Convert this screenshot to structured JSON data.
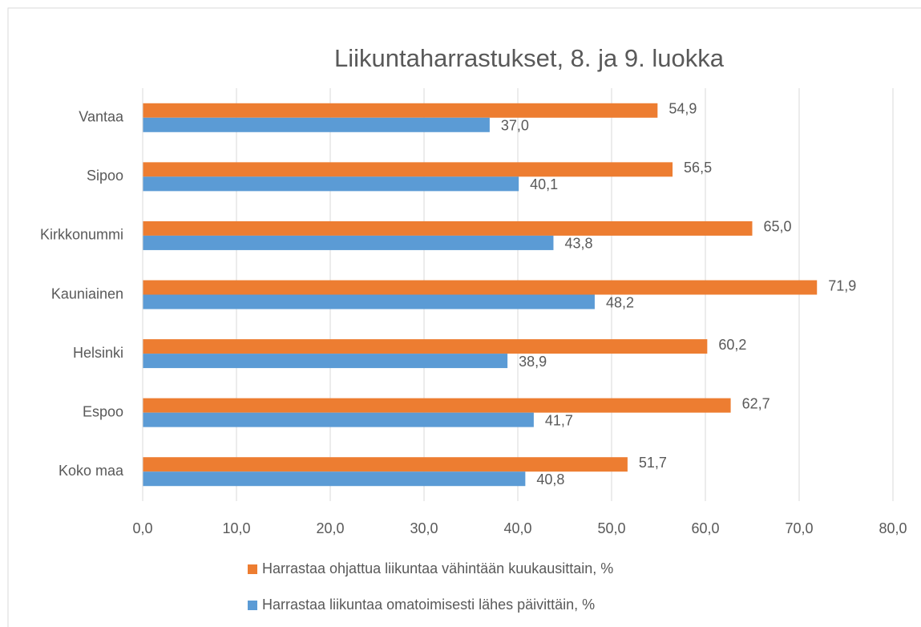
{
  "chart_data": {
    "type": "bar",
    "orientation": "horizontal",
    "title": "Liikuntaharrastukset, 8. ja 9. luokka",
    "categories": [
      "Vantaa",
      "Sipoo",
      "Kirkkonummi",
      "Kauniainen",
      "Helsinki",
      "Espoo",
      "Koko maa"
    ],
    "series": [
      {
        "name": "Harrastaa ohjattua liikuntaa vähintään kuukausittain, %",
        "color": "#ed7d31",
        "values": [
          54.9,
          56.5,
          65.0,
          71.9,
          60.2,
          62.7,
          51.7
        ],
        "value_labels": [
          "54,9",
          "56,5",
          "65,0",
          "71,9",
          "60,2",
          "62,7",
          "51,7"
        ]
      },
      {
        "name": "Harrastaa liikuntaa omatoimisesti lähes päivittäin, %",
        "color": "#5b9bd5",
        "values": [
          37.0,
          40.1,
          43.8,
          48.2,
          38.9,
          41.7,
          40.8
        ],
        "value_labels": [
          "37,0",
          "40,1",
          "43,8",
          "48,2",
          "38,9",
          "41,7",
          "40,8"
        ]
      }
    ],
    "xlim": [
      0,
      80
    ],
    "xticks": [
      {
        "value": 0,
        "label": "0,0"
      },
      {
        "value": 10,
        "label": "10,0"
      },
      {
        "value": 20,
        "label": "20,0"
      },
      {
        "value": 30,
        "label": "30,0"
      },
      {
        "value": 40,
        "label": "40,0"
      },
      {
        "value": 50,
        "label": "50,0"
      },
      {
        "value": 60,
        "label": "60,0"
      },
      {
        "value": 70,
        "label": "70,0"
      },
      {
        "value": 80,
        "label": "80,0"
      }
    ],
    "grid": true,
    "legend": "bottom"
  }
}
